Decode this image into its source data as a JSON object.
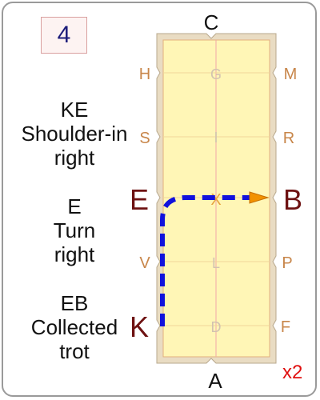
{
  "movement_number": "4",
  "repeat": "x2",
  "arena": {
    "letters": {
      "top": "C",
      "bottom": "A",
      "left": [
        "H",
        "S",
        "E",
        "V",
        "K"
      ],
      "right": [
        "M",
        "R",
        "B",
        "P",
        "F"
      ],
      "center": [
        "G",
        "I",
        "X",
        "L",
        "D"
      ]
    }
  },
  "movements": [
    {
      "lines": [
        "KE",
        "Shoulder-in",
        "right"
      ]
    },
    {
      "lines": [
        "E",
        "Turn",
        "right"
      ]
    },
    {
      "lines": [
        "EB",
        "Collected",
        "trot"
      ]
    }
  ],
  "colors": {
    "arena_fill": "#fff6b6",
    "arena_border": "#e9dcc3",
    "letter_dim": "#c8864a",
    "letter_bold": "#6e1212",
    "path": "#1111dd",
    "arrow": "#f29200"
  }
}
